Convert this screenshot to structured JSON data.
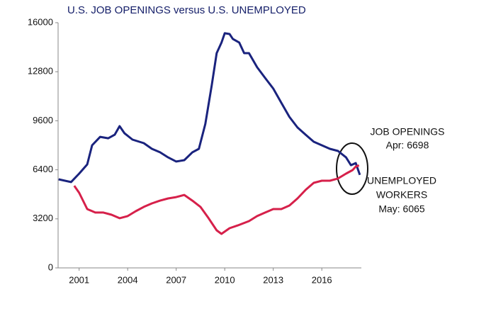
{
  "chart_data": {
    "type": "line",
    "title": "U.S. JOB OPENINGS versus U.S. UNEMPLOYED",
    "xlim": [
      1999.7,
      2018.4
    ],
    "xticks": [
      2001,
      2004,
      2007,
      2010,
      2013,
      2016
    ],
    "ylim": [
      0,
      16000
    ],
    "yticks": [
      0,
      3200,
      6400,
      9600,
      12800,
      16000
    ],
    "series": [
      {
        "color": "#1a237e",
        "x": [
          1999.73,
          2000.5,
          2001.0,
          2001.5,
          2001.8,
          2002.3,
          2002.8,
          2003.2,
          2003.5,
          2003.8,
          2004.3,
          2005.0,
          2005.5,
          2006.0,
          2006.5,
          2007.0,
          2007.5,
          2008.0,
          2008.4,
          2008.8,
          2009.2,
          2009.5,
          2009.8,
          2010.0,
          2010.3,
          2010.5,
          2010.9,
          2011.2,
          2011.5,
          2012.0,
          2012.5,
          2013.0,
          2013.5,
          2014.0,
          2014.5,
          2015.0,
          2015.5,
          2016.0,
          2016.5,
          2017.0,
          2017.5,
          2017.8,
          2018.1,
          2018.35
        ],
        "values": [
          5780,
          5600,
          6150,
          6750,
          8000,
          8550,
          8460,
          8690,
          9250,
          8790,
          8370,
          8140,
          7770,
          7540,
          7210,
          6940,
          7030,
          7540,
          7770,
          9390,
          11930,
          14010,
          14700,
          15310,
          15260,
          14940,
          14700,
          14010,
          14010,
          13090,
          12390,
          11700,
          10770,
          9850,
          9160,
          8690,
          8230,
          8000,
          7770,
          7630,
          7210,
          6700,
          6840,
          6065
        ]
      },
      {
        "color": "#d6204a",
        "x": [
          2000.7,
          2001.0,
          2001.5,
          2002.0,
          2002.5,
          2003.0,
          2003.5,
          2004.0,
          2004.5,
          2005.0,
          2005.5,
          2006.0,
          2006.5,
          2007.0,
          2007.5,
          2008.0,
          2008.5,
          2009.0,
          2009.5,
          2009.8,
          2010.3,
          2010.8,
          2011.5,
          2012.0,
          2012.5,
          2013.0,
          2013.5,
          2014.0,
          2014.5,
          2015.0,
          2015.5,
          2016.0,
          2016.5,
          2017.0,
          2017.5,
          2017.9,
          2018.1,
          2018.3
        ],
        "values": [
          5360,
          4900,
          3840,
          3610,
          3610,
          3470,
          3240,
          3380,
          3700,
          3980,
          4210,
          4390,
          4530,
          4620,
          4760,
          4390,
          3980,
          3240,
          2450,
          2220,
          2590,
          2770,
          3050,
          3380,
          3610,
          3840,
          3840,
          4070,
          4530,
          5090,
          5550,
          5690,
          5690,
          5830,
          6150,
          6380,
          6610,
          6698
        ]
      }
    ],
    "annotations": [
      "JOB OPENINGS",
      "Apr: 6698",
      "UNEMPLOYED",
      "WORKERS",
      "May: 6065"
    ]
  }
}
